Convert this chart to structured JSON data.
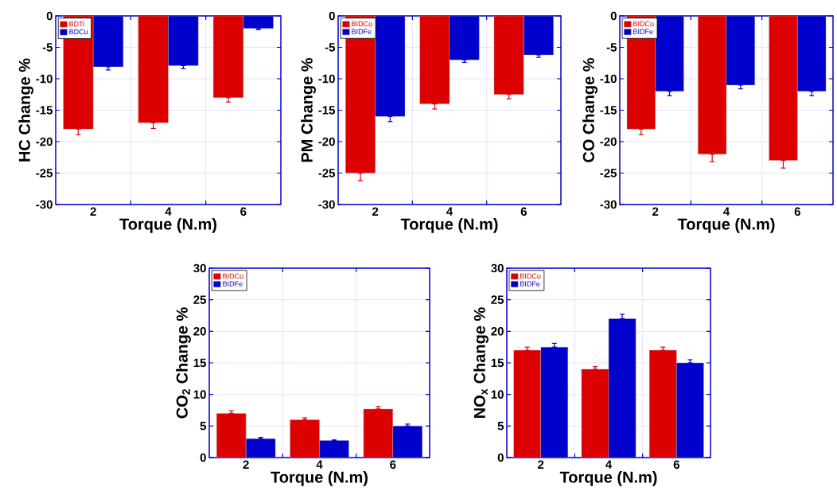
{
  "chart_data": [
    {
      "type": "bar",
      "xlabel": "Torque (N.m)",
      "ylabel": "HC Change %",
      "categories": [
        "2",
        "4",
        "6"
      ],
      "series": [
        {
          "name": "BDTi",
          "color": "#dd0000",
          "values": [
            -18,
            -17,
            -13
          ],
          "errors": [
            [
              -18.9,
              -18
            ],
            [
              -17.9,
              -17
            ],
            [
              -13.7,
              -13
            ]
          ]
        },
        {
          "name": "BDCu",
          "color": "#0000cc",
          "values": [
            -8.1,
            -7.9,
            -2
          ],
          "errors": [
            [
              -8.6,
              -8.1
            ],
            [
              -8.4,
              -7.9
            ],
            [
              -2.2,
              -2
            ]
          ]
        }
      ],
      "ylim": [
        -30,
        0
      ],
      "yticks": [
        -30,
        -25,
        -20,
        -15,
        -10,
        -5,
        0
      ],
      "grid": true,
      "legend": "top left"
    },
    {
      "type": "bar",
      "xlabel": "Torque (N.m)",
      "ylabel": "PM Change %",
      "categories": [
        "2",
        "4",
        "6"
      ],
      "series": [
        {
          "name": "BIDCo",
          "color": "#dd0000",
          "values": [
            -25,
            -14,
            -12.5
          ],
          "errors": [
            [
              -26.2,
              -25
            ],
            [
              -14.8,
              -14
            ],
            [
              -13.2,
              -12.5
            ]
          ]
        },
        {
          "name": "BIDFe",
          "color": "#0000cc",
          "values": [
            -16,
            -7,
            -6.2
          ],
          "errors": [
            [
              -16.8,
              -16
            ],
            [
              -7.4,
              -7
            ],
            [
              -6.6,
              -6.2
            ]
          ]
        }
      ],
      "ylim": [
        -30,
        0
      ],
      "yticks": [
        -30,
        -25,
        -20,
        -15,
        -10,
        -5,
        0
      ],
      "grid": true,
      "legend": "top left"
    },
    {
      "type": "bar",
      "xlabel": "Torque (N.m)",
      "ylabel": "CO Change %",
      "categories": [
        "2",
        "4",
        "6"
      ],
      "series": [
        {
          "name": "BIDCo",
          "color": "#dd0000",
          "values": [
            -18,
            -22,
            -23
          ],
          "errors": [
            [
              -18.9,
              -18
            ],
            [
              -23.2,
              -22
            ],
            [
              -24.2,
              -23
            ]
          ]
        },
        {
          "name": "BIDFe",
          "color": "#0000cc",
          "values": [
            -12,
            -11,
            -12
          ],
          "errors": [
            [
              -12.7,
              -12
            ],
            [
              -11.6,
              -11
            ],
            [
              -12.7,
              -12
            ]
          ]
        }
      ],
      "ylim": [
        -30,
        0
      ],
      "yticks": [
        -30,
        -25,
        -20,
        -15,
        -10,
        -5,
        0
      ],
      "grid": true,
      "legend": "top left"
    },
    {
      "type": "bar",
      "xlabel": "Torque (N.m)",
      "ylabel": "CO$_{2}$ Change %",
      "categories": [
        "2",
        "4",
        "6"
      ],
      "series": [
        {
          "name": "BIDCo",
          "color": "#dd0000",
          "values": [
            7,
            6,
            7.7
          ],
          "errors": [
            [
              7,
              7.4
            ],
            [
              6,
              6.3
            ],
            [
              7.7,
              8.1
            ]
          ]
        },
        {
          "name": "BIDFe",
          "color": "#0000cc",
          "values": [
            3,
            2.7,
            5
          ],
          "errors": [
            [
              3,
              3.2
            ],
            [
              2.7,
              2.8
            ],
            [
              5,
              5.3
            ]
          ]
        }
      ],
      "ylim": [
        0,
        30
      ],
      "yticks": [
        0,
        5,
        10,
        15,
        20,
        25,
        30
      ],
      "grid": true,
      "legend": "top left"
    },
    {
      "type": "bar",
      "xlabel": "Torque (N.m)",
      "ylabel": "NO$_{x}$ Change %",
      "categories": [
        "2",
        "4",
        "6"
      ],
      "series": [
        {
          "name": "BIDCo",
          "color": "#dd0000",
          "values": [
            17,
            14,
            17
          ],
          "errors": [
            [
              17,
              17.5
            ],
            [
              14,
              14.4
            ],
            [
              17,
              17.5
            ]
          ]
        },
        {
          "name": "BIDFe",
          "color": "#0000cc",
          "values": [
            17.5,
            22,
            15
          ],
          "errors": [
            [
              17.5,
              18.1
            ],
            [
              22,
              22.7
            ],
            [
              15,
              15.5
            ]
          ]
        }
      ],
      "ylim": [
        0,
        30
      ],
      "yticks": [
        0,
        5,
        10,
        15,
        20,
        25,
        30
      ],
      "grid": true,
      "legend": "top left"
    }
  ]
}
